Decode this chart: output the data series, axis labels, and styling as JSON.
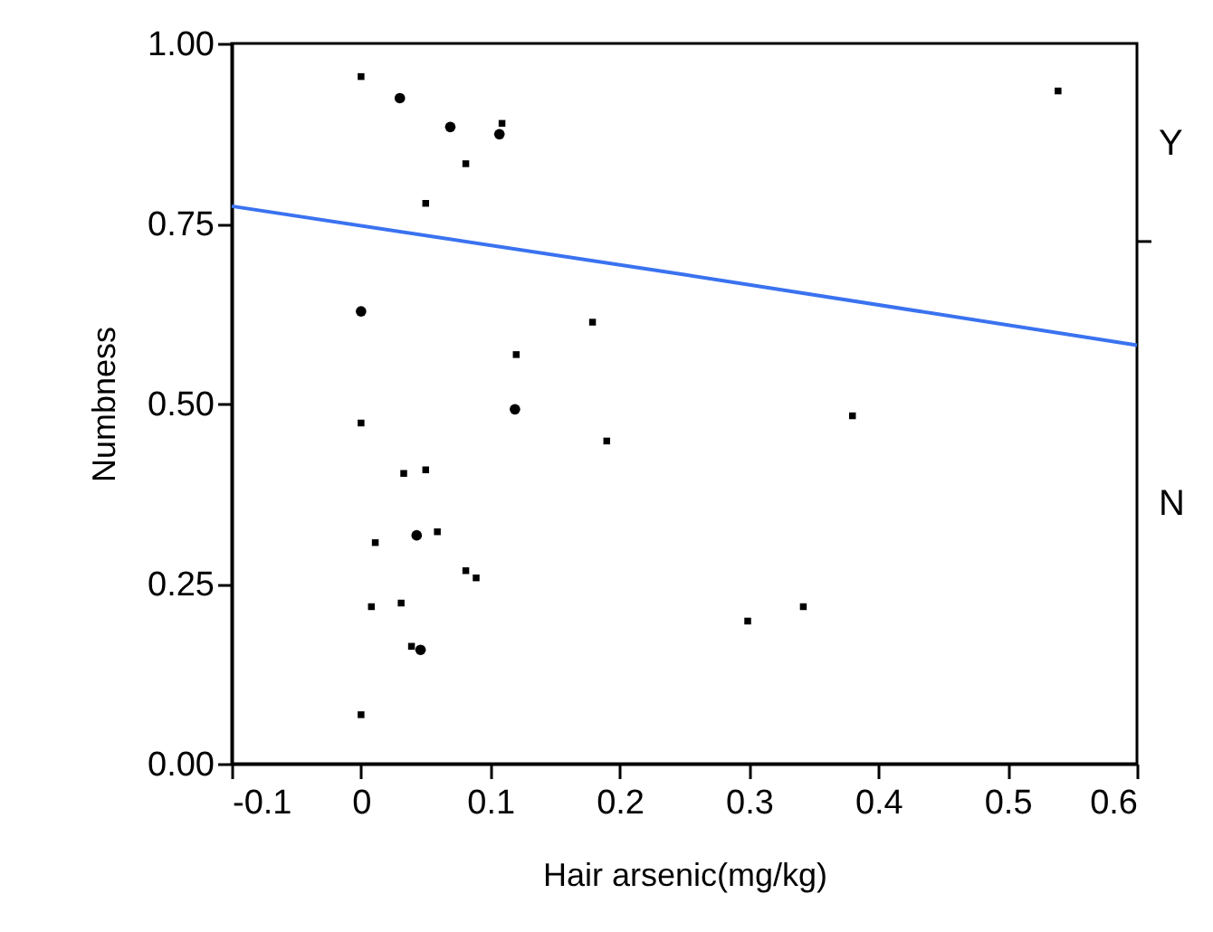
{
  "chart_data": {
    "type": "scatter",
    "xlabel": "Hair arsenic(mg/kg)",
    "ylabel": "Numbness",
    "xlim": [
      -0.1,
      0.6
    ],
    "xticks": [
      -0.1,
      0,
      0.1,
      0.2,
      0.3,
      0.4,
      0.5,
      0.6
    ],
    "ylim": [
      0,
      1
    ],
    "yticks": [
      {
        "value": 0,
        "label": "0.00"
      },
      {
        "value": 0.25,
        "label": "0.25"
      },
      {
        "value": 0.5,
        "label": "0.50"
      },
      {
        "value": 0.75,
        "label": "0.75"
      },
      {
        "value": 1,
        "label": "1.00"
      }
    ],
    "annotations": [
      "Y",
      "N"
    ],
    "grid": false,
    "series": [
      {
        "type": "scatter",
        "marker": "square",
        "color": "#000000",
        "x": [
          0.0,
          0.109,
          0.081,
          0.05,
          0.179,
          0.12,
          0.0,
          0.19,
          0.033,
          0.05,
          0.059,
          0.011,
          0.081,
          0.089,
          0.008,
          0.031,
          0.039,
          0.0,
          0.539,
          0.38,
          0.299,
          0.342
        ],
        "values": [
          0.954,
          0.889,
          0.833,
          0.778,
          0.613,
          0.568,
          0.473,
          0.448,
          0.403,
          0.408,
          0.322,
          0.307,
          0.268,
          0.258,
          0.218,
          0.223,
          0.163,
          0.068,
          0.934,
          0.483,
          0.198,
          0.218
        ]
      },
      {
        "type": "scatter",
        "marker": "circle",
        "color": "#000000",
        "x": [
          0.03,
          0.069,
          0.107,
          0.0,
          0.119,
          0.043,
          0.046
        ],
        "values": [
          0.924,
          0.884,
          0.874,
          0.628,
          0.492,
          0.317,
          0.158
        ]
      },
      {
        "type": "line",
        "color": "#3a72f0",
        "line_style": "solid",
        "x": [
          -0.1,
          0.25,
          0.6
        ],
        "values": [
          0.774,
          0.679,
          0.581
        ]
      }
    ]
  }
}
